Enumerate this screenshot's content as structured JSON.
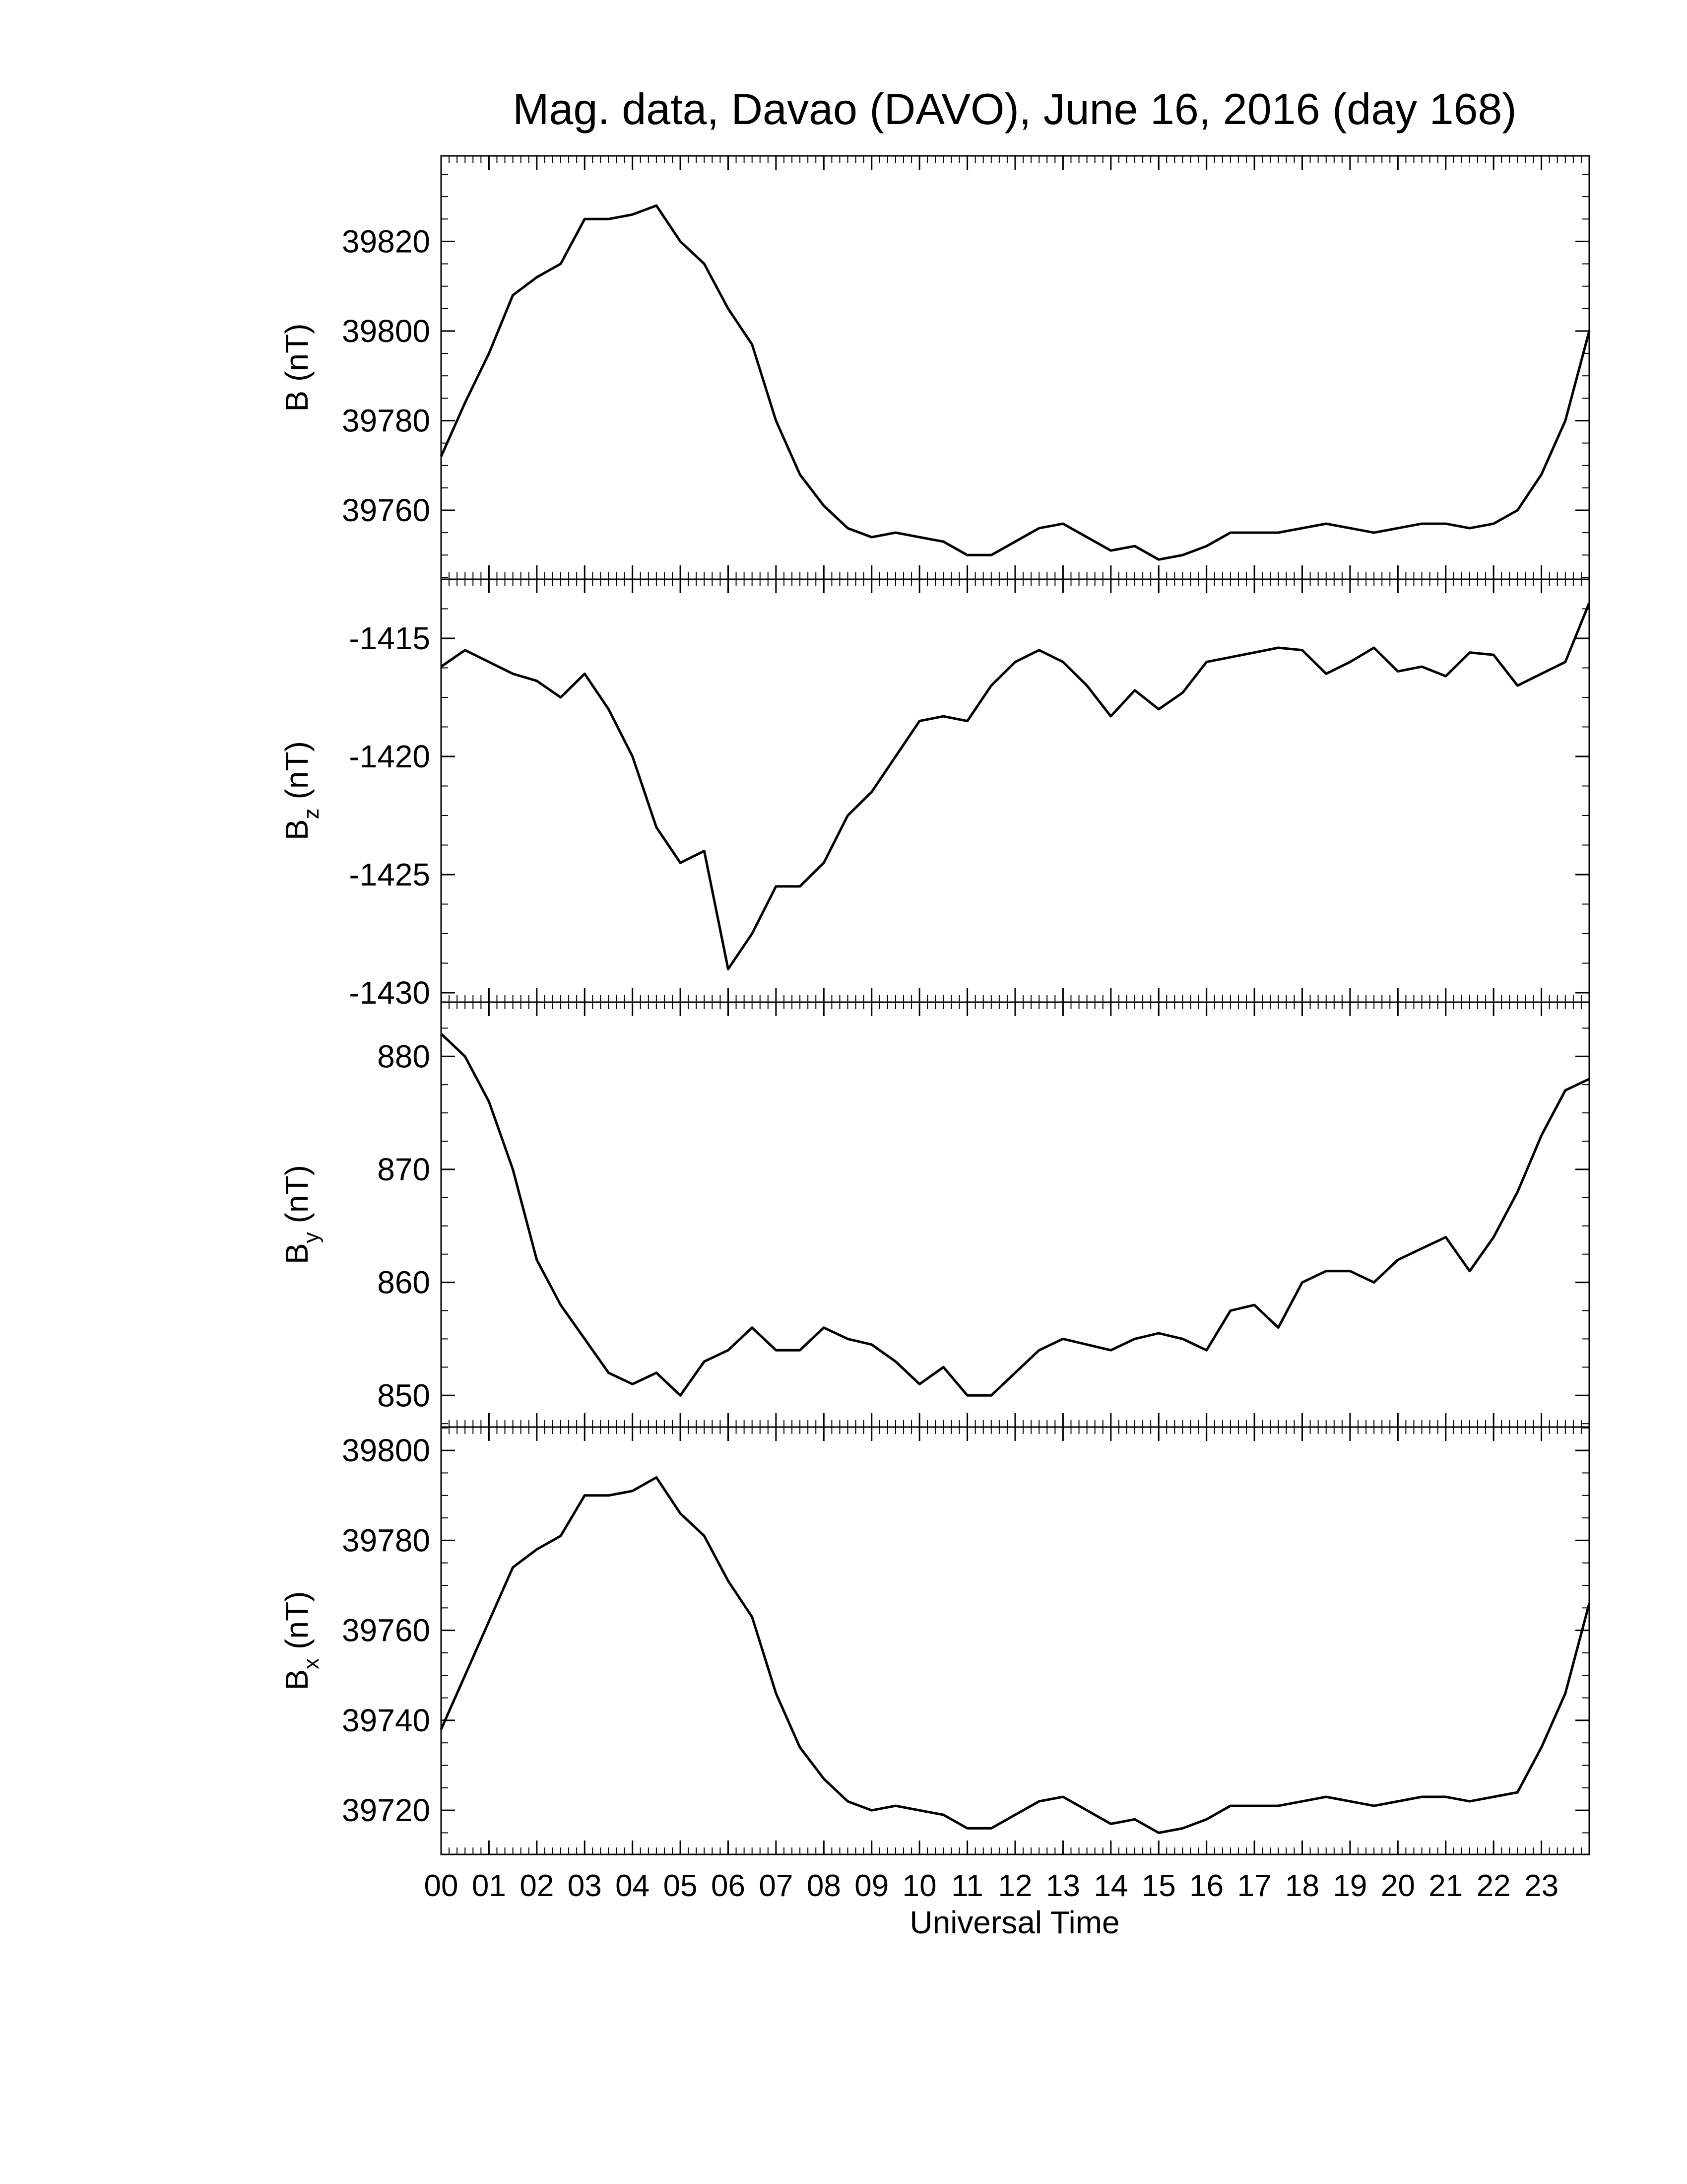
{
  "chart_data": [
    {
      "type": "line",
      "title": "Mag. data, Davao (DAVO), June 16, 2016 (day 168)",
      "ylabel": {
        "symbol": "B",
        "unit": "(nT)"
      },
      "x": [
        0,
        0.5,
        1,
        1.5,
        2,
        2.5,
        3,
        3.5,
        4,
        4.5,
        5,
        5.5,
        6,
        6.5,
        7,
        7.5,
        8,
        8.5,
        9,
        9.5,
        10,
        10.5,
        11,
        11.5,
        12,
        12.5,
        13,
        13.5,
        14,
        14.5,
        15,
        15.5,
        16,
        16.5,
        17,
        17.5,
        18,
        18.5,
        19,
        19.5,
        20,
        20.5,
        21,
        21.5,
        22,
        22.5,
        23,
        23.5,
        24
      ],
      "series": [
        {
          "color": "#000000",
          "values": [
            39772,
            39784,
            39795,
            39808,
            39812,
            39815,
            39825,
            39825,
            39826,
            39828,
            39820,
            39815,
            39805,
            39797,
            39780,
            39768,
            39761,
            39756,
            39754,
            39755,
            39754,
            39753,
            39750,
            39750,
            39753,
            39756,
            39757,
            39754,
            39751,
            39752,
            39749,
            39750,
            39752,
            39755,
            39755,
            39755,
            39756,
            39757,
            39756,
            39755,
            39756,
            39757,
            39757,
            39756,
            39757,
            39760,
            39768,
            39780,
            39800
          ]
        }
      ],
      "xlim": [
        0,
        24
      ],
      "ylim": [
        39744.6,
        39839.1
      ],
      "yticks": [
        39760,
        39780,
        39800,
        39820
      ]
    },
    {
      "type": "line",
      "ylabel": {
        "symbol": "B",
        "subscript": "z",
        "unit": "(nT)"
      },
      "x": [
        0,
        0.5,
        1,
        1.5,
        2,
        2.5,
        3,
        3.5,
        4,
        4.5,
        5,
        5.5,
        6,
        6.5,
        7,
        7.5,
        8,
        8.5,
        9,
        9.5,
        10,
        10.5,
        11,
        11.5,
        12,
        12.5,
        13,
        13.5,
        14,
        14.5,
        15,
        15.5,
        16,
        16.5,
        17,
        17.5,
        18,
        18.5,
        19,
        19.5,
        20,
        20.5,
        21,
        21.5,
        22,
        22.5,
        23,
        23.5,
        24
      ],
      "series": [
        {
          "color": "#000000",
          "values": [
            -1416.2,
            -1415.5,
            -1416,
            -1416.5,
            -1416.8,
            -1417.5,
            -1416.5,
            -1418,
            -1420,
            -1423,
            -1424.5,
            -1424,
            -1429,
            -1427.5,
            -1425.5,
            -1425.5,
            -1424.5,
            -1422.5,
            -1421.5,
            -1420,
            -1418.5,
            -1418.3,
            -1418.5,
            -1417,
            -1416,
            -1415.5,
            -1416,
            -1417,
            -1418.3,
            -1417.2,
            -1418,
            -1417.3,
            -1416,
            -1415.8,
            -1415.6,
            -1415.4,
            -1415.5,
            -1416.5,
            -1416,
            -1415.4,
            -1416.4,
            -1416.2,
            -1416.6,
            -1415.6,
            -1415.7,
            -1417,
            -1416.5,
            -1416,
            -1413.5
          ]
        }
      ],
      "xlim": [
        0,
        24
      ],
      "ylim": [
        -1430.4,
        -1412.5
      ],
      "yticks": [
        -1430,
        -1425,
        -1420,
        -1415
      ]
    },
    {
      "type": "line",
      "ylabel": {
        "symbol": "B",
        "subscript": "y",
        "unit": "(nT)"
      },
      "x": [
        0,
        0.5,
        1,
        1.5,
        2,
        2.5,
        3,
        3.5,
        4,
        4.5,
        5,
        5.5,
        6,
        6.5,
        7,
        7.5,
        8,
        8.5,
        9,
        9.5,
        10,
        10.5,
        11,
        11.5,
        12,
        12.5,
        13,
        13.5,
        14,
        14.5,
        15,
        15.5,
        16,
        16.5,
        17,
        17.5,
        18,
        18.5,
        19,
        19.5,
        20,
        20.5,
        21,
        21.5,
        22,
        22.5,
        23,
        23.5,
        24
      ],
      "series": [
        {
          "color": "#000000",
          "values": [
            882,
            880,
            876,
            870,
            862,
            858,
            855,
            852,
            851,
            852,
            850,
            853,
            854,
            856,
            854,
            854,
            856,
            855,
            854.5,
            853,
            851,
            852.5,
            850,
            850,
            852,
            854,
            855,
            854.5,
            854,
            855,
            855.5,
            855,
            854,
            857.5,
            858,
            856,
            860,
            861,
            861,
            860,
            862,
            863,
            864,
            861,
            864,
            868,
            873,
            877,
            878
          ]
        }
      ],
      "xlim": [
        0,
        24
      ],
      "ylim": [
        847.2,
        884.8
      ],
      "yticks": [
        850,
        860,
        870,
        880
      ]
    },
    {
      "type": "line",
      "xlabel": "Universal Time",
      "ylabel": {
        "symbol": "B",
        "subscript": "x",
        "unit": "(nT)"
      },
      "x": [
        0,
        0.5,
        1,
        1.5,
        2,
        2.5,
        3,
        3.5,
        4,
        4.5,
        5,
        5.5,
        6,
        6.5,
        7,
        7.5,
        8,
        8.5,
        9,
        9.5,
        10,
        10.5,
        11,
        11.5,
        12,
        12.5,
        13,
        13.5,
        14,
        14.5,
        15,
        15.5,
        16,
        16.5,
        17,
        17.5,
        18,
        18.5,
        19,
        19.5,
        20,
        20.5,
        21,
        21.5,
        22,
        22.5,
        23,
        23.5,
        24
      ],
      "series": [
        {
          "color": "#000000",
          "values": [
            39738,
            39750,
            39762,
            39774,
            39778,
            39781,
            39790,
            39790,
            39791,
            39794,
            39786,
            39781,
            39771,
            39763,
            39746,
            39734,
            39727,
            39722,
            39720,
            39721,
            39720,
            39719,
            39716,
            39716,
            39719,
            39722,
            39723,
            39720,
            39717,
            39718,
            39715,
            39716,
            39718,
            39721,
            39721,
            39721,
            39722,
            39723,
            39722,
            39721,
            39722,
            39723,
            39723,
            39722,
            39723,
            39724,
            39734,
            39746,
            39766
          ]
        }
      ],
      "xlim": [
        0,
        24
      ],
      "ylim": [
        39710.2,
        39805.2
      ],
      "yticks": [
        39720,
        39740,
        39760,
        39780,
        39800
      ],
      "xticks": [
        {
          "value": 0,
          "label": "00"
        },
        {
          "value": 1,
          "label": "01"
        },
        {
          "value": 2,
          "label": "02"
        },
        {
          "value": 3,
          "label": "03"
        },
        {
          "value": 4,
          "label": "04"
        },
        {
          "value": 5,
          "label": "05"
        },
        {
          "value": 6,
          "label": "06"
        },
        {
          "value": 7,
          "label": "07"
        },
        {
          "value": 8,
          "label": "08"
        },
        {
          "value": 9,
          "label": "09"
        },
        10,
        11,
        12,
        13,
        14,
        15,
        16,
        17,
        18,
        19,
        20,
        21,
        22,
        23
      ]
    }
  ]
}
